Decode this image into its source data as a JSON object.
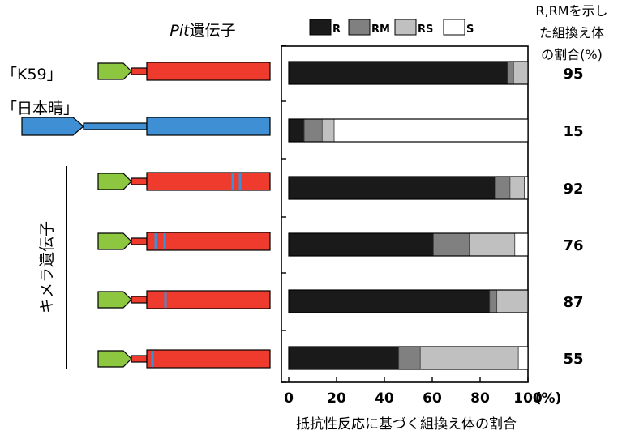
{
  "pit_gene_title": {
    "prefix": "Pit",
    "suffix": "遺伝子"
  },
  "right_header": [
    "R,RMを示し",
    "た組換え体",
    "の割合(%)"
  ],
  "left_labels": [
    "「K59」",
    "「日本晴」"
  ],
  "chimera_label": "キメラ遺伝子",
  "colors": {
    "R": "#1a1a1a",
    "RM": "#808080",
    "RS": "#c0c0c0",
    "S": "#ffffff",
    "k59_gene": "#ee3b2e",
    "nipponbare_gene": "#3e8fd4",
    "promoter": "#8dc63f",
    "chimera_stripe": "#3e8fd4"
  },
  "chart_data": {
    "type": "bar",
    "orientation": "horizontal",
    "stacked": true,
    "categories": [
      "「K59」",
      "「日本晴」",
      "",
      "",
      "",
      ""
    ],
    "series": [
      {
        "name": "R",
        "values": [
          91.5,
          6.5,
          86.5,
          60.5,
          84,
          46
        ]
      },
      {
        "name": "RM",
        "values": [
          2.5,
          7.5,
          6,
          15,
          3,
          9
        ]
      },
      {
        "name": "RS",
        "values": [
          6,
          5,
          6,
          19,
          13,
          41
        ]
      },
      {
        "name": "S",
        "values": [
          0,
          81,
          1.5,
          5.5,
          0,
          4
        ]
      }
    ],
    "annotation_values": [
      "95",
      "15",
      "92",
      "76",
      "87",
      "55"
    ],
    "xticks": [
      "0",
      "20",
      "40",
      "60",
      "80",
      "100"
    ],
    "xtick_values": [
      0,
      20,
      40,
      60,
      80,
      100
    ],
    "xunit": "(%)",
    "xlim": [
      0,
      100
    ],
    "xlabel": "抵抗性反応に基づく組換え体の割合",
    "legend_position": "top",
    "grid": false
  }
}
